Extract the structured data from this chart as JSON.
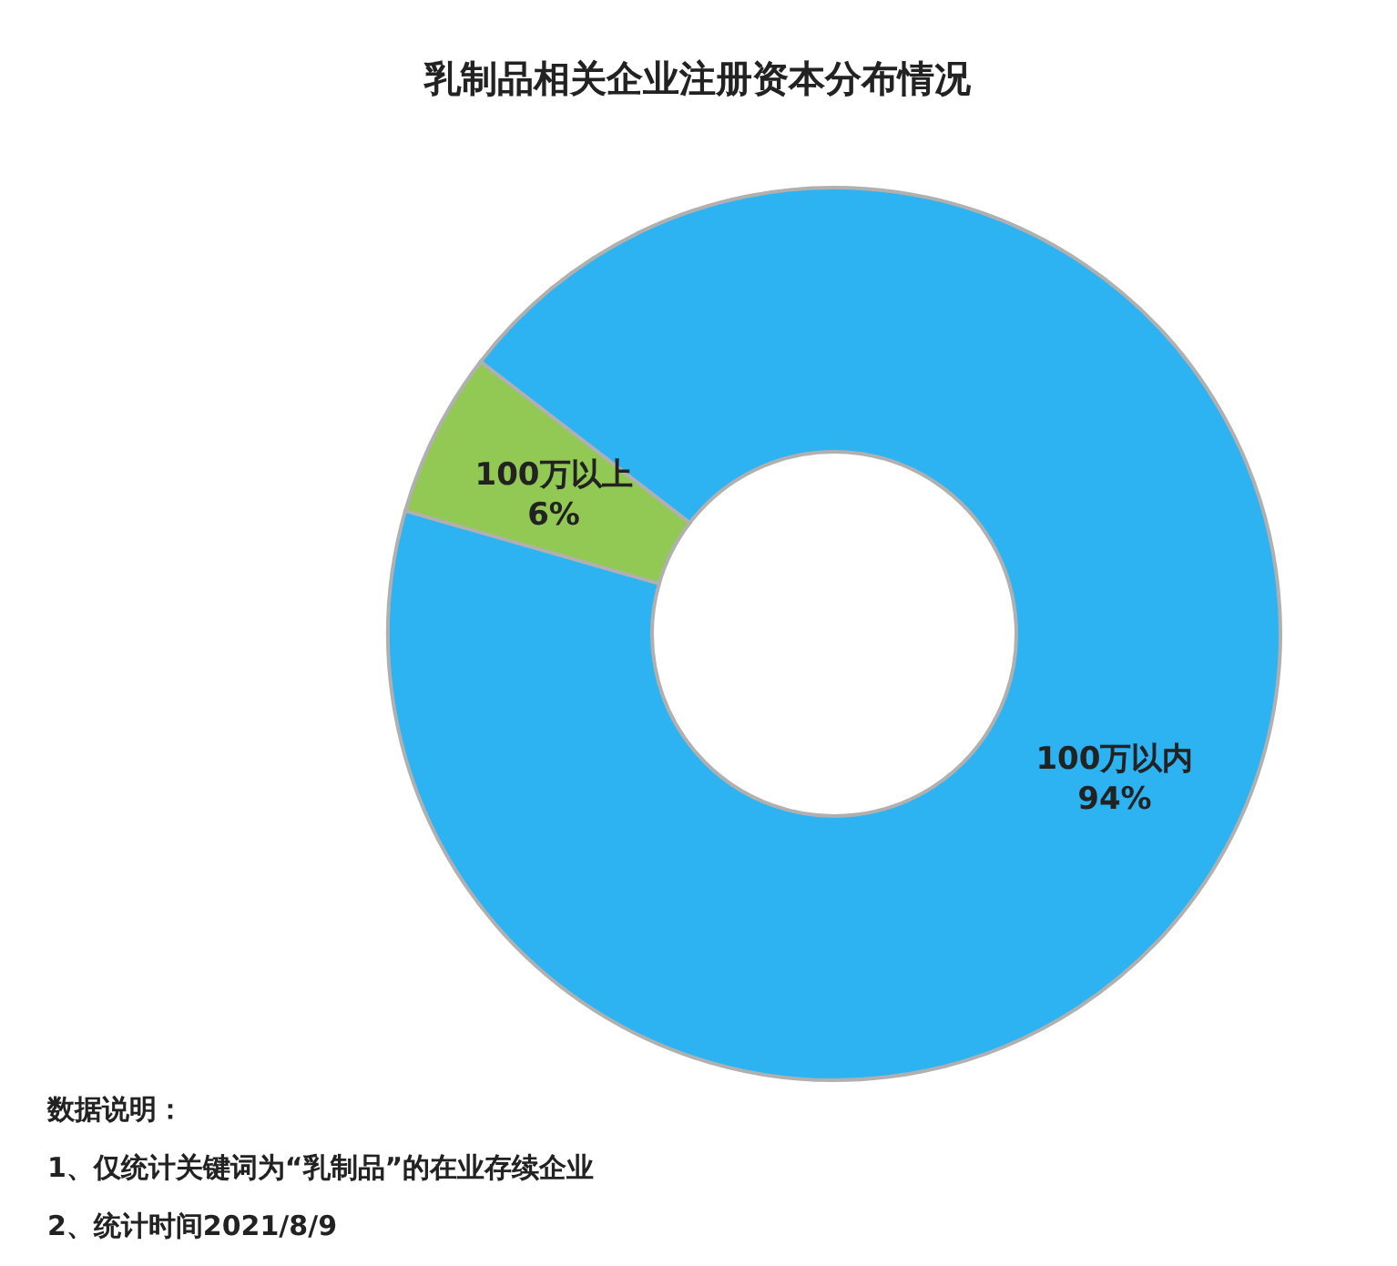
{
  "chart_data": {
    "type": "donut",
    "title": "乳制品相关企业注册资本分布情况",
    "categories": [
      "100万以上",
      "100万以内"
    ],
    "values": [
      6,
      94
    ],
    "value_labels": [
      "6%",
      "94%"
    ],
    "colors": [
      "#92c954",
      "#2db3f2"
    ],
    "annotations": [
      "数据说明：",
      "1、仅统计关键词为“乳制品”的在业存续企业",
      "2、统计时间2021/8/9"
    ]
  }
}
